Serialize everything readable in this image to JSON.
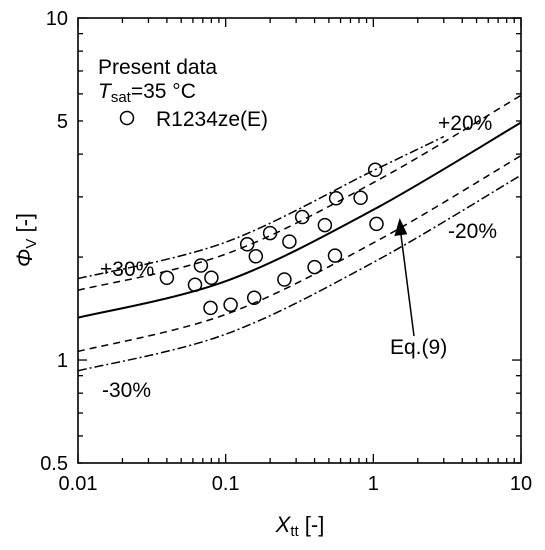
{
  "chart_data": {
    "type": "scatter",
    "x_scale": "log",
    "y_scale": "log",
    "xlim": [
      0.01,
      10
    ],
    "ylim": [
      0.5,
      10
    ],
    "x_ticks": [
      0.01,
      0.1,
      1,
      10
    ],
    "x_tick_labels": [
      "0.01",
      "0.1",
      "1",
      "10"
    ],
    "y_ticks": [
      0.5,
      1,
      5,
      10
    ],
    "y_tick_labels": [
      "0.5",
      "1",
      "5",
      "10"
    ],
    "xlabel": {
      "symbol": "X",
      "subscript": "tt",
      "suffix": " [-]"
    },
    "ylabel": {
      "symbol": "Φ",
      "subscript": "V",
      "suffix": " [-]"
    },
    "grid": false,
    "legend": {
      "placement": "top-left",
      "title": "Present data",
      "condition": {
        "symbol": "T",
        "subscript": "sat",
        "text": "=35 °C"
      },
      "series_name": "R1234ze(E)"
    },
    "series": [
      {
        "name": "R1234ze(E)",
        "marker": "open-circle",
        "points": [
          [
            0.04,
            1.74
          ],
          [
            0.062,
            1.66
          ],
          [
            0.068,
            1.89
          ],
          [
            0.08,
            1.74
          ],
          [
            0.079,
            1.42
          ],
          [
            0.108,
            1.45
          ],
          [
            0.14,
            2.18
          ],
          [
            0.16,
            2.01
          ],
          [
            0.156,
            1.52
          ],
          [
            0.2,
            2.35
          ],
          [
            0.25,
            1.72
          ],
          [
            0.27,
            2.22
          ],
          [
            0.33,
            2.62
          ],
          [
            0.4,
            1.87
          ],
          [
            0.47,
            2.48
          ],
          [
            0.55,
            2.02
          ],
          [
            0.56,
            2.97
          ],
          [
            0.82,
            2.98
          ],
          [
            1.03,
            3.6
          ],
          [
            1.05,
            2.5
          ]
        ]
      }
    ],
    "correlation_curves": [
      {
        "id": "eq9",
        "style": "solid",
        "points": [
          [
            0.01,
            1.33
          ],
          [
            0.1,
            1.7
          ],
          [
            1,
            2.75
          ],
          [
            10,
            4.95
          ]
        ]
      },
      {
        "id": "plus20",
        "style": "dashed",
        "points": [
          [
            0.01,
            1.6
          ],
          [
            0.1,
            2.04
          ],
          [
            1,
            3.3
          ],
          [
            10,
            5.94
          ]
        ]
      },
      {
        "id": "minus20",
        "style": "dashed",
        "points": [
          [
            0.01,
            1.06
          ],
          [
            0.1,
            1.36
          ],
          [
            1,
            2.2
          ],
          [
            10,
            3.96
          ]
        ]
      },
      {
        "id": "plus30",
        "style": "dash-dot",
        "points": [
          [
            0.01,
            1.73
          ],
          [
            0.1,
            2.21
          ],
          [
            1,
            3.58
          ],
          [
            3,
            4.5
          ]
        ]
      },
      {
        "id": "minus30",
        "style": "dash-dot",
        "points": [
          [
            0.01,
            0.93
          ],
          [
            0.1,
            1.19
          ],
          [
            1,
            1.93
          ],
          [
            10,
            3.47
          ]
        ]
      }
    ],
    "annotations": {
      "plus20": "+20%",
      "minus20": "-20%",
      "plus30": "+30%",
      "minus30": "-30%",
      "eq": "Eq.(9)"
    }
  }
}
